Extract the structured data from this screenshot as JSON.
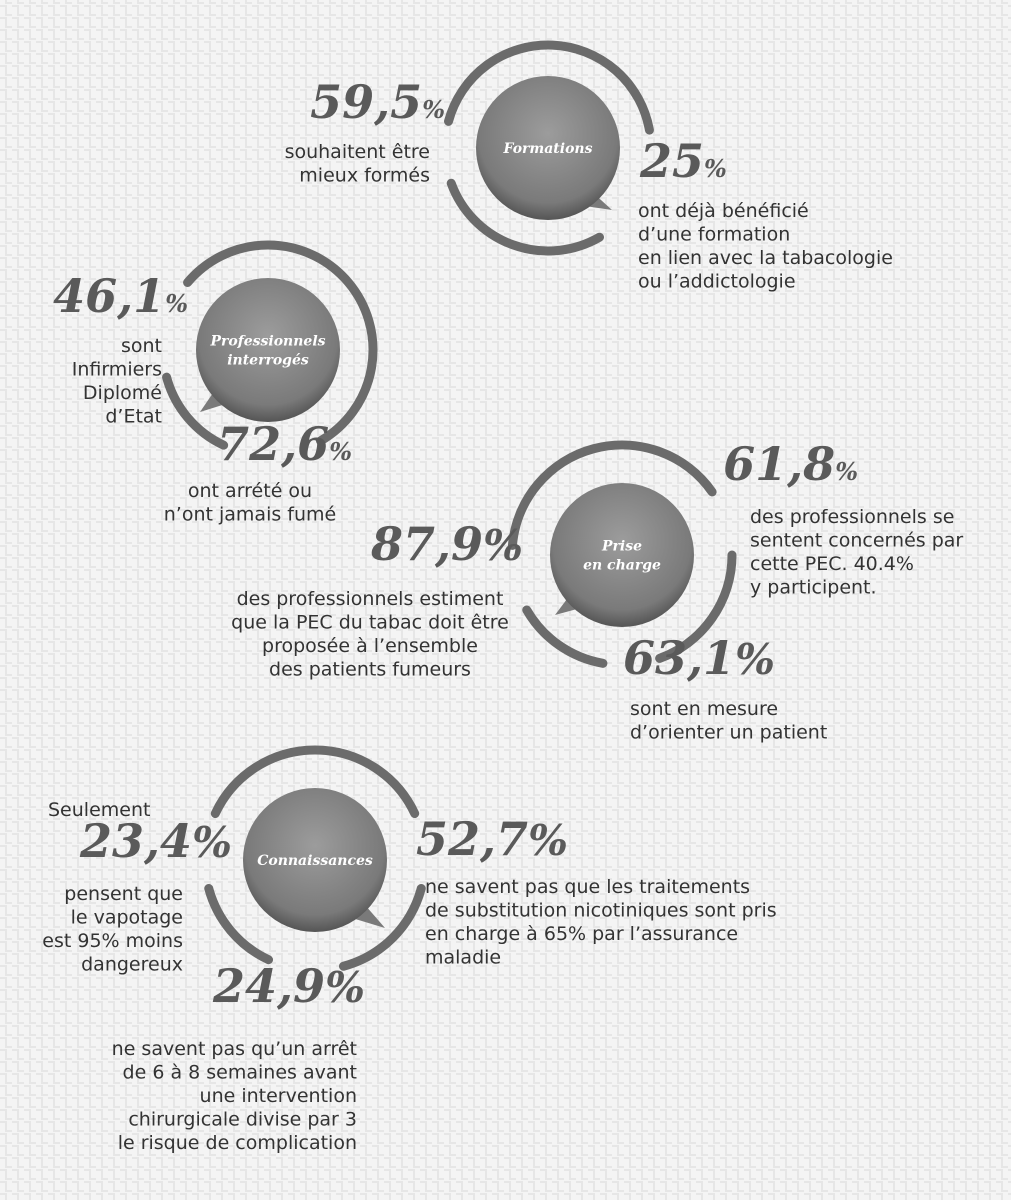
{
  "groups": [
    {
      "topic": [
        "Formations"
      ],
      "stats": [
        {
          "number": "59,5",
          "unit": "%",
          "lines": [
            "souhaitent être",
            "mieux formés"
          ]
        },
        {
          "number": "25",
          "unit": "%",
          "lines": [
            "ont déjà bénéficié",
            "d’une formation",
            "en lien avec la tabacologie",
            "ou l’addictologie"
          ]
        }
      ]
    },
    {
      "topic": [
        "Professionnels",
        "interrogés"
      ],
      "stats": [
        {
          "number": "46,1",
          "unit": "%",
          "lines": [
            "sont",
            "Infirmiers",
            "Diplomé",
            "d’Etat"
          ]
        },
        {
          "number": "72,6",
          "unit": "%",
          "lines": [
            "ont arrété ou",
            "n’ont jamais fumé"
          ]
        }
      ]
    },
    {
      "topic": [
        "Prise",
        "en charge"
      ],
      "stats": [
        {
          "number": "61,8",
          "unit": "%",
          "lines": [
            "des professionnels se",
            "sentent concernés par",
            "cette PEC. 40.4%",
            "y participent."
          ]
        },
        {
          "number": "87,9",
          "unit": "%",
          "lines": [
            "des professionnels estiment",
            "que  la PEC du tabac doit être",
            "proposée à l’ensemble",
            "des patients fumeurs"
          ]
        },
        {
          "number": "63,1",
          "unit": "%",
          "lines": [
            "sont en mesure",
            "d’orienter un patient"
          ]
        }
      ]
    },
    {
      "topic": [
        "Connaissances"
      ],
      "stats": [
        {
          "prefix": "Seulement",
          "number": "23,4",
          "unit": "%",
          "lines": [
            "pensent que",
            "le vapotage",
            "est 95% moins",
            "dangereux"
          ]
        },
        {
          "number": "52,7",
          "unit": "%",
          "lines": [
            "ne savent pas que les traitements",
            "de substitution nicotiniques sont pris",
            "en charge à 65% par l’assurance",
            "maladie"
          ]
        },
        {
          "number": "24,9",
          "unit": "%",
          "lines": [
            "ne savent pas qu’un arrêt",
            "de 6 à 8 semaines avant",
            "une intervention",
            "chirurgicale divise par 3",
            "le risque de complication"
          ]
        }
      ]
    }
  ]
}
